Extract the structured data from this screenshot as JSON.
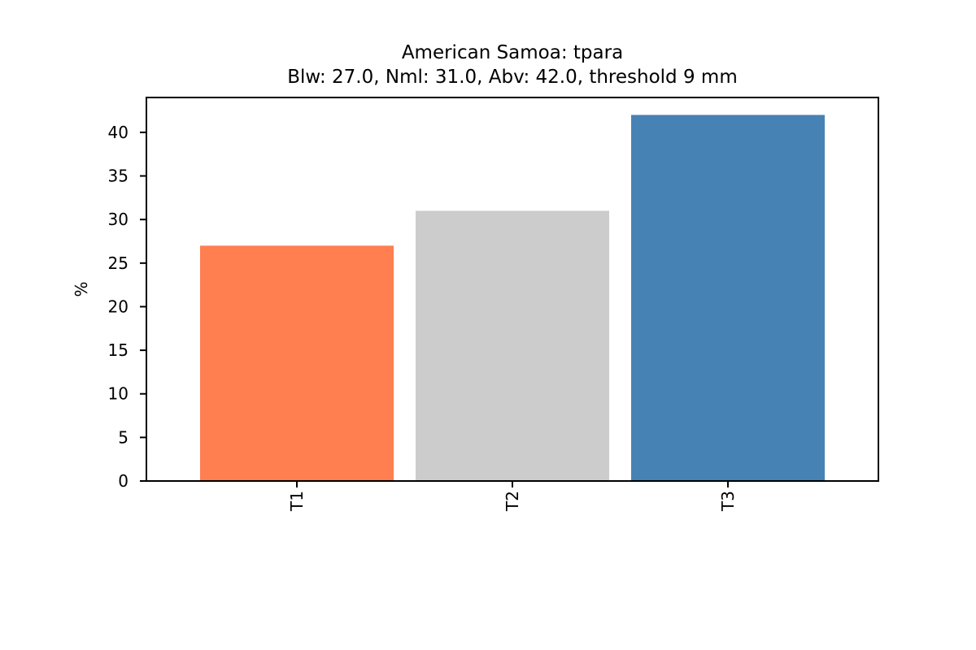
{
  "chart_data": {
    "type": "bar",
    "title": "American Samoa: tpara",
    "subtitle": "Blw: 27.0, Nml: 31.0, Abv: 42.0, threshold 9 mm",
    "xlabel": "",
    "ylabel": "%",
    "categories": [
      "T1",
      "T2",
      "T3"
    ],
    "values": [
      27.0,
      31.0,
      42.0
    ],
    "colors": [
      "#ff7f50",
      "#cccccc",
      "#4682b4"
    ],
    "ylim": [
      0,
      44
    ],
    "yticks": [
      0,
      5,
      10,
      15,
      20,
      25,
      30,
      35,
      40
    ],
    "xtick_rotation": "vertical",
    "grid": false,
    "legend": "none"
  }
}
